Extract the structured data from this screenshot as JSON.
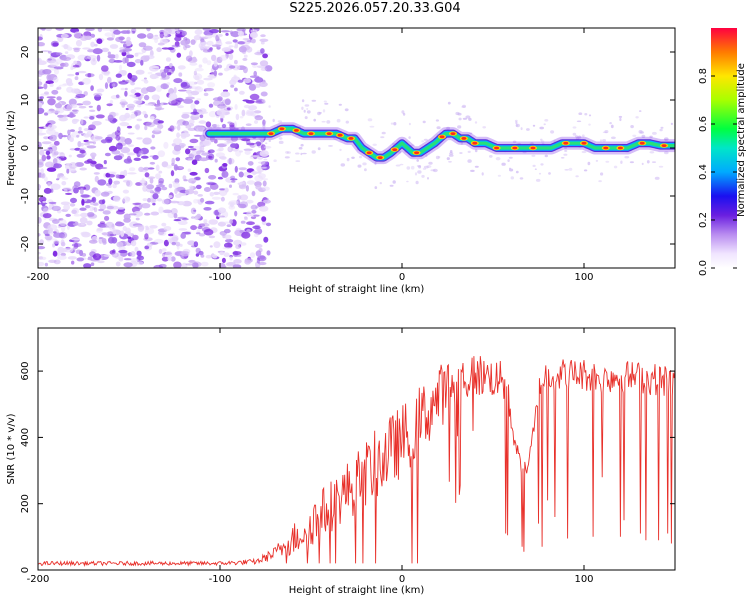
{
  "title": "S225.2026.057.20.33.G04",
  "chart_data": [
    {
      "type": "heatmap",
      "name": "spectrogram",
      "xlabel": "Height of straight line (km)",
      "ylabel": "Frequency (Hz)",
      "xlim": [
        -200,
        150
      ],
      "ylim": [
        -25,
        25
      ],
      "xticks": [
        -200,
        -100,
        0,
        100
      ],
      "xtick_labels": [
        "-200",
        "-100",
        "0",
        "100"
      ],
      "yticks": [
        -20,
        -10,
        0,
        10,
        20
      ],
      "ytick_labels": [
        "-20",
        "-10",
        "0",
        "10",
        "20"
      ],
      "noise_region_x": [
        -200,
        -76
      ],
      "ridge": {
        "x": [
          -106,
          -95,
          -85,
          -78,
          -72,
          -66,
          -60,
          -54,
          -48,
          -42,
          -36,
          -30,
          -26,
          -22,
          -18,
          -14,
          -10,
          -6,
          -3,
          0,
          3,
          6,
          10,
          14,
          18,
          21,
          24,
          28,
          32,
          36,
          40,
          46,
          52,
          58,
          64,
          70,
          76,
          82,
          88,
          94,
          100,
          106,
          112,
          118,
          124,
          130,
          136,
          142,
          150
        ],
        "y": [
          3,
          3,
          3,
          3,
          3,
          4,
          4,
          3,
          3,
          3,
          3,
          2,
          2,
          0,
          -1,
          -2,
          -2,
          -1,
          0,
          1,
          0,
          -1,
          -1,
          0,
          1,
          2,
          3,
          3,
          2,
          2,
          1,
          1,
          0,
          0,
          0,
          0,
          0,
          0,
          1,
          1,
          1,
          0,
          0,
          0,
          0,
          1,
          1,
          0.5,
          0.5
        ]
      },
      "colorbar": {
        "label": "Normalized spectral amplitude",
        "range": [
          0,
          1
        ],
        "ticks": [
          0.0,
          0.2,
          0.4,
          0.6,
          0.8
        ],
        "tick_labels": [
          "0.0",
          "0.2",
          "0.4",
          "0.6",
          "0.8"
        ]
      }
    },
    {
      "type": "line",
      "name": "snr",
      "xlabel": "Height of straight line (km)",
      "ylabel": "SNR (10 * v/v)",
      "xlim": [
        -200,
        150
      ],
      "ylim": [
        0,
        730
      ],
      "xticks": [
        -200,
        -100,
        0,
        100
      ],
      "xtick_labels": [
        "-200",
        "-100",
        "0",
        "100"
      ],
      "yticks": [
        0,
        200,
        400,
        600
      ],
      "ytick_labels": [
        "0",
        "200",
        "400",
        "600"
      ],
      "color": "#e8302a",
      "envelope": {
        "x": [
          -200,
          -150,
          -100,
          -80,
          -70,
          -60,
          -50,
          -40,
          -30,
          -20,
          -10,
          0,
          10,
          20,
          30,
          40,
          50,
          55,
          58,
          60,
          62,
          64,
          66,
          68,
          70,
          72,
          74,
          76,
          78,
          80,
          90,
          100,
          110,
          120,
          130,
          140,
          150
        ],
        "mean": [
          20,
          20,
          20,
          25,
          50,
          90,
          140,
          190,
          240,
          290,
          340,
          390,
          450,
          520,
          570,
          590,
          580,
          570,
          540,
          450,
          390,
          340,
          310,
          300,
          330,
          400,
          480,
          560,
          580,
          590,
          590,
          590,
          580,
          585,
          580,
          575,
          570
        ],
        "spread": [
          6,
          6,
          6,
          8,
          20,
          50,
          70,
          80,
          90,
          100,
          110,
          110,
          110,
          100,
          80,
          70,
          60,
          60,
          50,
          40,
          30,
          25,
          25,
          25,
          30,
          40,
          50,
          50,
          50,
          50,
          50,
          50,
          50,
          50,
          50,
          50,
          50
        ]
      },
      "dropouts": [
        {
          "x": 57,
          "y": 110
        },
        {
          "x": 58,
          "y": 105
        },
        {
          "x": 66,
          "y": 70
        },
        {
          "x": 67,
          "y": 55
        },
        {
          "x": 75,
          "y": 140
        },
        {
          "x": 77,
          "y": 70
        },
        {
          "x": 80,
          "y": 210
        },
        {
          "x": 84,
          "y": 160
        },
        {
          "x": 91,
          "y": 95
        },
        {
          "x": 105,
          "y": 100
        },
        {
          "x": 110,
          "y": 280
        },
        {
          "x": 120,
          "y": 100
        },
        {
          "x": 122,
          "y": 150
        },
        {
          "x": 131,
          "y": 110
        },
        {
          "x": 134,
          "y": 90
        },
        {
          "x": 141,
          "y": 90
        },
        {
          "x": 146,
          "y": 110
        },
        {
          "x": 148,
          "y": 80
        }
      ]
    }
  ]
}
